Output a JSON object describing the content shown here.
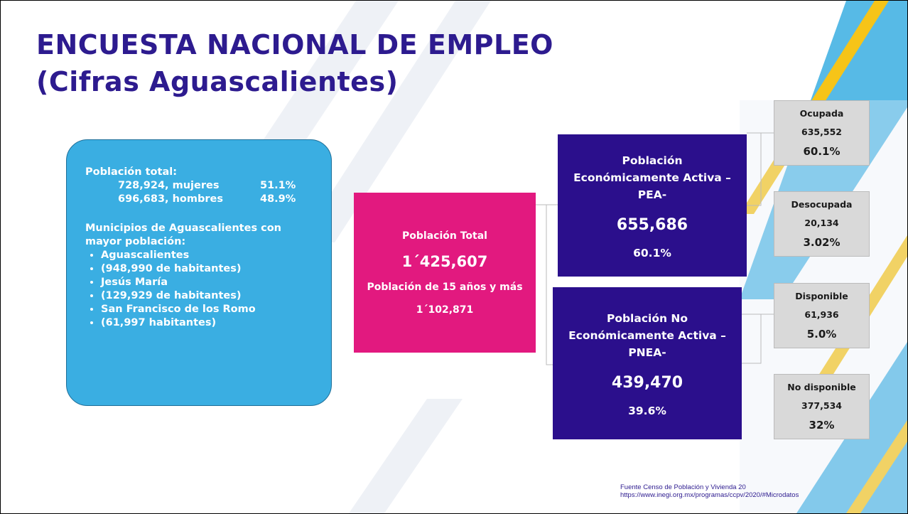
{
  "title": [
    "ENCUESTA NACIONAL DE EMPLEO",
    "(Cifras Aguascalientes)"
  ],
  "summary": {
    "heading": "Población total:",
    "rows": [
      {
        "count": "728,924, mujeres",
        "pct": "51.1%"
      },
      {
        "count": "696,683, hombres",
        "pct": "48.9%"
      }
    ],
    "municipios_heading": "Municipios de Aguascalientes con mayor población:",
    "municipios": [
      "Aguascalientes",
      "(948,990 de habitantes)",
      "Jesús María",
      "(129,929 de habitantes)",
      "San Francisco de los Romo",
      "(61,997 habitantes)"
    ]
  },
  "total": {
    "label": "Población Total",
    "value": "1´425,607",
    "sub_label": "Población de 15 años y más",
    "sub_value": "1´102,871"
  },
  "groups": [
    {
      "label": "Población Económicamente Activa – PEA-",
      "value": "655,686",
      "pct": "60.1%",
      "children": [
        {
          "label": "Ocupada",
          "value": "635,552",
          "pct": "60.1%"
        },
        {
          "label": "Desocupada",
          "value": "20,134",
          "pct": "3.02%"
        }
      ]
    },
    {
      "label": "Población No Económicamente Activa – PNEA-",
      "value": "439,470",
      "pct": "39.6%",
      "children": [
        {
          "label": "Disponible",
          "value": "61,936",
          "pct": "5.0%"
        },
        {
          "label": "No disponible",
          "value": "377,534",
          "pct": "32%"
        }
      ]
    }
  ],
  "source": [
    "Fuente Censo de Población y Vivienda 20",
    "https://www.inegi.org.mx/programas/ccpv/2020/#Microdatos"
  ]
}
